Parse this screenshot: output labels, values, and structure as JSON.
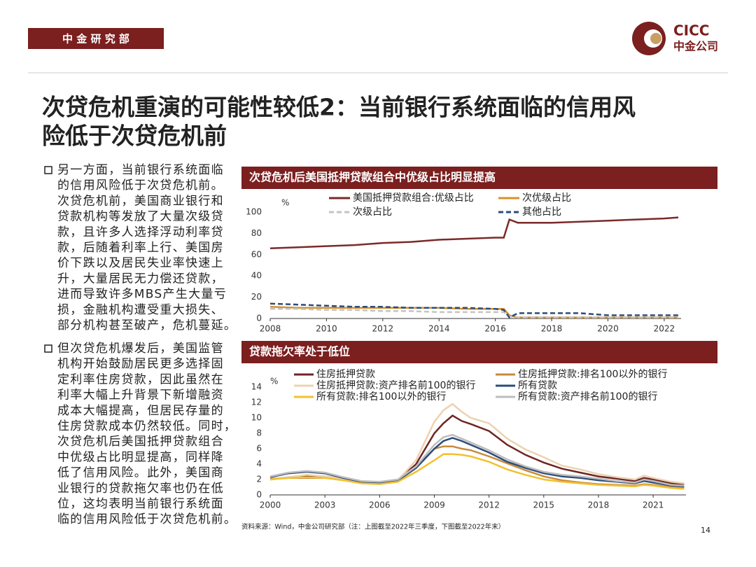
{
  "header": {
    "department": "中 金 研 究 部",
    "logo_en": "CICC",
    "logo_cn": "中金公司"
  },
  "title_lines": [
    "次贷危机重演的可能性较低2：当前银行系统面临的信用风",
    "险低于次贷危机前"
  ],
  "bullets": [
    {
      "lines": [
        "另一方面，当前银行系统面临",
        "的信用风险低于次贷危机前。",
        "次贷危机前，美国商业银行和",
        "贷款机构等发放了大量次级贷",
        "款，且许多人选择浮动利率贷",
        "款，后随着利率上行、美国房",
        "价下跌以及居民失业率快速上",
        "升，大量居民无力偿还贷款，",
        "进而导致许多MBS产生大量亏",
        "损，金融机构遭受重大损失、",
        "部分机构甚至破产，危机蔓延。"
      ]
    },
    {
      "lines": [
        "但次贷危机爆发后，美国监管",
        "机构开始鼓励居民更多选择固",
        "定利率住房贷款，因此虽然在",
        "利率大幅上升背景下新增融资",
        "成本大幅提高，但居民存量的",
        "住房贷款成本仍然较低。同时，",
        "次贷危机后美国抵押贷款组合",
        "中优级占比明显提高，同样降",
        "低了信用风险。此外，美国商",
        "业银行的贷款拖欠率也仍在低",
        "位，这均表明当前银行系统面",
        "临的信用风险低于次贷危机前。"
      ]
    }
  ],
  "chart_data": [
    {
      "type": "line",
      "title": "次贷危机后美国抵押贷款组合中优级占比明显提高",
      "y_unit": "%",
      "x": [
        2008,
        2009,
        2010,
        2011,
        2012,
        2013,
        2014,
        2015,
        2016,
        2016.3,
        2016.5,
        2016.8,
        2017,
        2018,
        2019,
        2020,
        2021,
        2022,
        2022.5
      ],
      "xlim": [
        2008,
        2022.6
      ],
      "xticks": [
        2008,
        2010,
        2012,
        2014,
        2016,
        2018,
        2020,
        2022
      ],
      "ylim": [
        0,
        100
      ],
      "yticks": [
        0,
        20,
        40,
        60,
        80,
        100
      ],
      "series": [
        {
          "name": "美国抵押贷款组合:优级占比",
          "color": "#7b2a2a",
          "dash": false,
          "values": [
            66,
            67,
            68,
            69,
            71,
            72,
            74,
            75,
            76,
            76,
            93,
            90,
            90,
            90,
            91,
            92,
            93,
            94,
            95
          ]
        },
        {
          "name": "次优级占比",
          "color": "#d9912a",
          "dash": false,
          "values": [
            11,
            10,
            10,
            10,
            10,
            10,
            10,
            9,
            9,
            9,
            3,
            1,
            1,
            1,
            1,
            1,
            1,
            1,
            1
          ]
        },
        {
          "name": "次级占比",
          "color": "#c4c4c4",
          "dash": true,
          "values": [
            9,
            9,
            8,
            8,
            7,
            7,
            6,
            6,
            6,
            6,
            2,
            1,
            1,
            1,
            1,
            1,
            1,
            1,
            1
          ]
        },
        {
          "name": "其他占比",
          "color": "#2b4d7a",
          "dash": true,
          "values": [
            14,
            13,
            12,
            11,
            11,
            10,
            10,
            10,
            9,
            8,
            1,
            5,
            5,
            5,
            5,
            3,
            3,
            3,
            3
          ]
        }
      ]
    },
    {
      "type": "line",
      "title": "贷款拖欠率处于低位",
      "y_unit": "%",
      "x": [
        2000,
        2001,
        2002,
        2003,
        2004,
        2005,
        2006,
        2007,
        2008,
        2009,
        2009.5,
        2010,
        2010.5,
        2011,
        2012,
        2013,
        2014,
        2015,
        2016,
        2017,
        2018,
        2019,
        2020,
        2020.5,
        2021,
        2022,
        2022.7
      ],
      "xlim": [
        2000,
        2022.8
      ],
      "xticks": [
        2000,
        2003,
        2006,
        2009,
        2012,
        2015,
        2018,
        2021
      ],
      "ylim": [
        0,
        14
      ],
      "yticks": [
        0,
        2,
        4,
        6,
        8,
        10,
        12,
        14
      ],
      "series": [
        {
          "name": "住房抵押贷款",
          "color": "#6e2525",
          "dash": false,
          "values": [
            2.0,
            2.3,
            2.5,
            2.4,
            2.1,
            1.7,
            1.6,
            1.9,
            4.0,
            8.0,
            9.3,
            10.3,
            9.6,
            9.2,
            8.3,
            6.5,
            5.2,
            4.2,
            3.4,
            2.9,
            2.4,
            2.1,
            1.8,
            2.2,
            2.0,
            1.5,
            1.4
          ]
        },
        {
          "name": "住房抵押贷款:排名100以外的银行",
          "color": "#c98a3c",
          "dash": false,
          "values": [
            2.1,
            2.2,
            2.2,
            2.2,
            2.0,
            1.6,
            1.5,
            1.8,
            3.5,
            6.0,
            6.3,
            6.3,
            6.0,
            5.8,
            5.0,
            4.1,
            3.2,
            2.4,
            1.9,
            1.6,
            1.4,
            1.3,
            1.2,
            1.4,
            1.3,
            1.0,
            0.9
          ]
        },
        {
          "name": "住房抵押贷款:资产排名前100的银行",
          "color": "#ecd2b0",
          "dash": false,
          "values": [
            2.0,
            2.3,
            2.6,
            2.4,
            2.1,
            1.7,
            1.6,
            1.9,
            4.5,
            9.5,
            11.0,
            11.8,
            10.8,
            10.0,
            9.3,
            7.3,
            5.9,
            4.9,
            3.8,
            3.3,
            2.7,
            2.3,
            2.0,
            2.5,
            2.2,
            1.7,
            1.5
          ]
        },
        {
          "name": "所有贷款",
          "color": "#2b4d7a",
          "dash": false,
          "values": [
            2.3,
            2.8,
            3.0,
            2.8,
            2.2,
            1.7,
            1.6,
            1.9,
            3.5,
            6.0,
            7.0,
            7.4,
            7.0,
            6.5,
            5.5,
            4.3,
            3.5,
            2.8,
            2.4,
            2.2,
            1.9,
            1.7,
            1.5,
            1.8,
            1.6,
            1.2,
            1.1
          ]
        },
        {
          "name": "所有贷款:排名100以外的银行",
          "color": "#f2c12e",
          "dash": false,
          "values": [
            2.0,
            2.2,
            2.3,
            2.2,
            1.9,
            1.5,
            1.4,
            1.7,
            3.0,
            4.5,
            5.3,
            5.3,
            5.2,
            5.0,
            4.3,
            3.3,
            2.6,
            2.0,
            1.7,
            1.5,
            1.3,
            1.2,
            1.1,
            1.3,
            1.2,
            0.9,
            0.8
          ]
        },
        {
          "name": "所有贷款:资产排名前100的银行",
          "color": "#bdbdbd",
          "dash": false,
          "values": [
            2.4,
            2.9,
            3.1,
            2.9,
            2.3,
            1.8,
            1.7,
            2.0,
            3.7,
            6.5,
            7.5,
            7.8,
            7.3,
            6.8,
            5.8,
            4.6,
            3.7,
            3.0,
            2.6,
            2.4,
            2.1,
            1.8,
            1.6,
            2.0,
            1.8,
            1.3,
            1.2
          ]
        }
      ]
    }
  ],
  "source": "资料来源：Wind，中金公司研究部（注：上图截至2022年三季度，下图截至2022年末）",
  "page_number": "14"
}
